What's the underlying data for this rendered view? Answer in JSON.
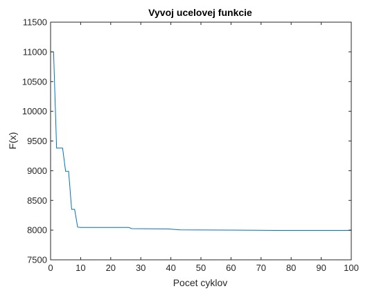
{
  "chart_data": {
    "type": "line",
    "title": "Vyvoj ucelovej funkcie",
    "xlabel": "Pocet cyklov",
    "ylabel": "F(x)",
    "xlim": [
      0,
      100
    ],
    "ylim": [
      7500,
      11500
    ],
    "xticks": [
      "0",
      "10",
      "20",
      "30",
      "40",
      "50",
      "60",
      "70",
      "80",
      "90",
      "100"
    ],
    "yticks": [
      "7500",
      "8000",
      "8500",
      "9000",
      "9500",
      "10000",
      "10500",
      "11000",
      "11500"
    ],
    "grid": false,
    "line_color": "#0072BD",
    "series": [
      {
        "x": [
          0,
          1,
          2,
          4,
          5,
          6,
          7,
          8,
          9,
          10,
          20,
          26,
          27,
          39,
          43,
          62,
          67,
          75,
          100
        ],
        "y": [
          11000,
          11000,
          9380,
          9380,
          8990,
          8990,
          8350,
          8350,
          8050,
          8045,
          8045,
          8045,
          8025,
          8020,
          8005,
          8000,
          7998,
          7996,
          7995
        ]
      }
    ]
  }
}
